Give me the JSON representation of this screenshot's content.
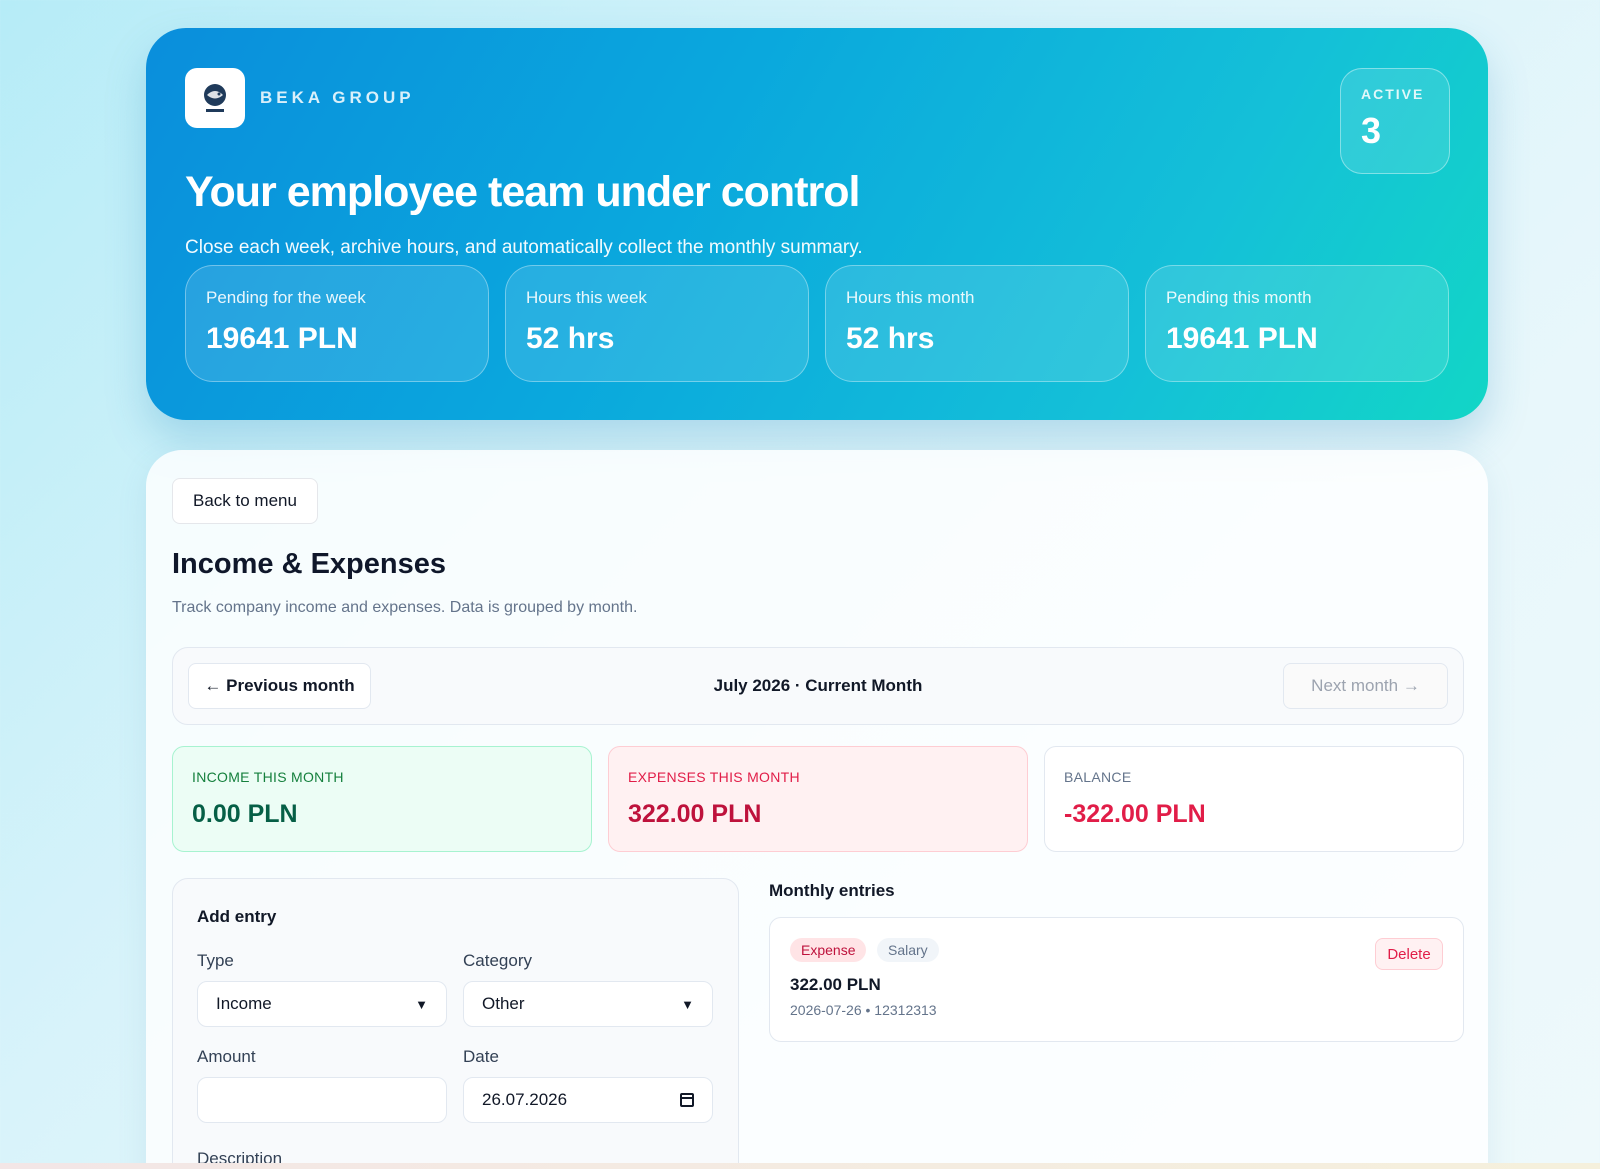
{
  "brand": {
    "name": "BEKA GROUP",
    "logo_icon": "fishing-logo-icon"
  },
  "hero": {
    "title": "Your employee team under control",
    "subtitle": "Close each week, archive hours, and automatically collect the monthly summary.",
    "active": {
      "label": "ACTIVE",
      "value": "3"
    },
    "stats": [
      {
        "label": "Pending for the week",
        "value": "19641 PLN"
      },
      {
        "label": "Hours this week",
        "value": "52 hrs"
      },
      {
        "label": "Hours this month",
        "value": "52 hrs"
      },
      {
        "label": "Pending this month",
        "value": "19641 PLN"
      }
    ]
  },
  "main": {
    "back_label": "Back to menu",
    "title": "Income & Expenses",
    "description": "Track company income and expenses. Data is grouped by month.",
    "nav": {
      "prev_label": "← Previous month",
      "current_label": "July 2026 · Current Month",
      "next_label": "Next month →"
    },
    "summary": {
      "income": {
        "label": "INCOME THIS MONTH",
        "value": "0.00 PLN"
      },
      "expenses": {
        "label": "EXPENSES THIS MONTH",
        "value": "322.00 PLN"
      },
      "balance": {
        "label": "BALANCE",
        "value": "-322.00 PLN"
      }
    },
    "add_entry": {
      "title": "Add entry",
      "type_label": "Type",
      "type_value": "Income",
      "category_label": "Category",
      "category_value": "Other",
      "amount_label": "Amount",
      "amount_value": "",
      "date_label": "Date",
      "date_value": "26.07.2026",
      "description_label": "Description"
    },
    "entries": {
      "title": "Monthly entries",
      "items": [
        {
          "type_badge": "Expense",
          "category_badge": "Salary",
          "amount": "322.00 PLN",
          "meta": "2026-07-26 • 12312313",
          "delete_label": "Delete"
        }
      ]
    }
  },
  "colors": {
    "hero_start": "#0a8edc",
    "hero_end": "#12d6c6",
    "income_accent": "#065f46",
    "expense_accent": "#be123c"
  }
}
